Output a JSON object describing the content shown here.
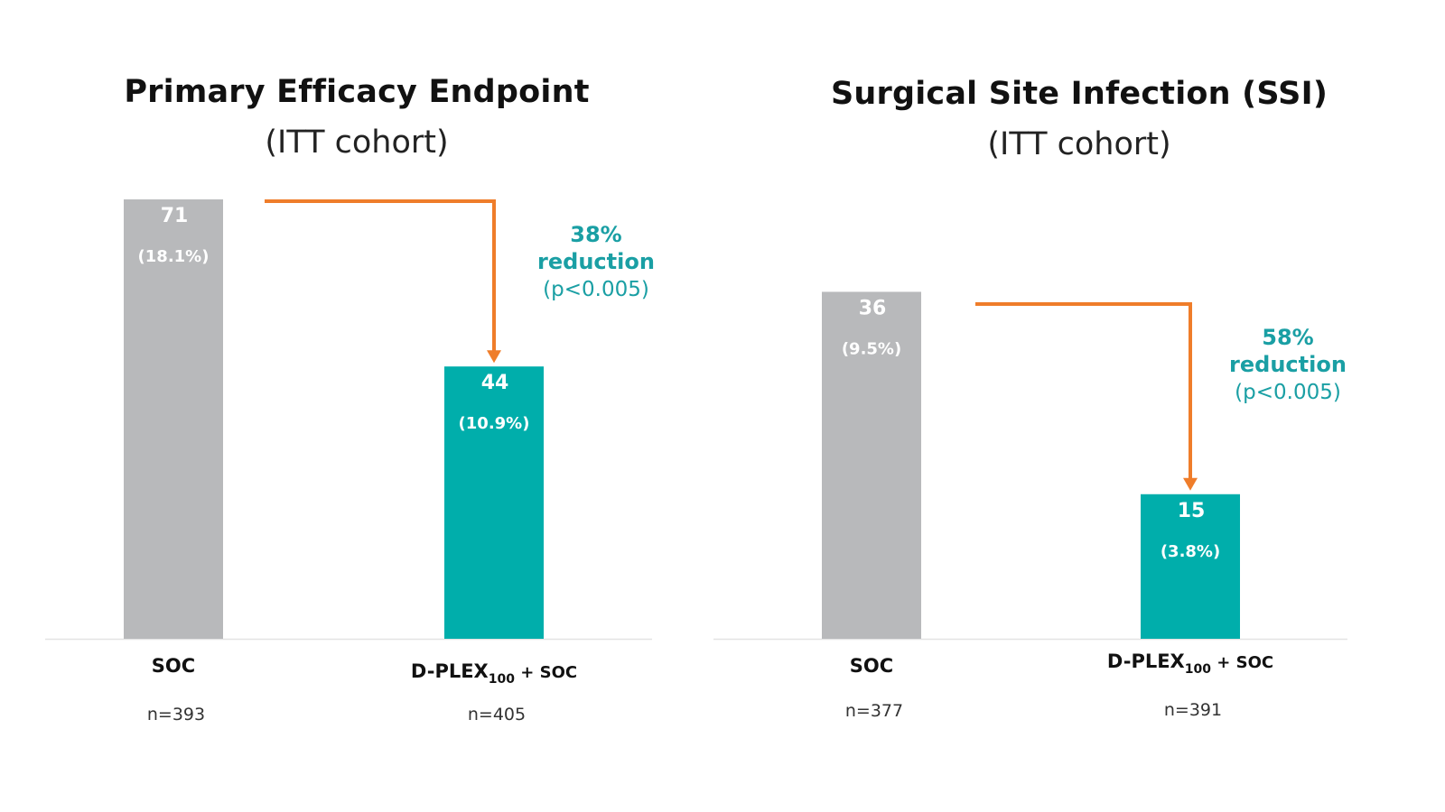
{
  "colors": {
    "soc": "#b8b9bb",
    "dplex": "#00aeab",
    "arrow": "#ef7d2a",
    "annotation": "#1a9fa4"
  },
  "chart_data": [
    {
      "type": "bar",
      "title": "Primary Efficacy Endpoint",
      "subtitle": "(ITT cohort)",
      "ylim": [
        0,
        71
      ],
      "categories": [
        {
          "name": "SOC",
          "sub": "",
          "suffix": ""
        },
        {
          "name": "D-PLEX",
          "sub": "100",
          "suffix": " + SOC"
        }
      ],
      "values": [
        71,
        44
      ],
      "value_labels": [
        "71",
        "44"
      ],
      "percent_labels": [
        "(18.1%)",
        "(10.9%)"
      ],
      "n_labels": [
        "n=393",
        "n=405"
      ],
      "annotation": {
        "line1": "38%",
        "line2": "reduction",
        "line3": "(p<0.005)"
      }
    },
    {
      "type": "bar",
      "title": "Surgical Site Infection (SSI)",
      "subtitle": "(ITT cohort)",
      "ylim": [
        0,
        48.4
      ],
      "categories": [
        {
          "name": "SOC",
          "sub": "",
          "suffix": ""
        },
        {
          "name": "D-PLEX",
          "sub": "100",
          "suffix": " + SOC"
        }
      ],
      "values": [
        36,
        15
      ],
      "value_labels": [
        "36",
        "15"
      ],
      "percent_labels": [
        "(9.5%)",
        "(3.8%)"
      ],
      "n_labels": [
        "n=377",
        "n=391"
      ],
      "annotation": {
        "line1": "58%",
        "line2": "reduction",
        "line3": "(p<0.005)"
      }
    }
  ]
}
